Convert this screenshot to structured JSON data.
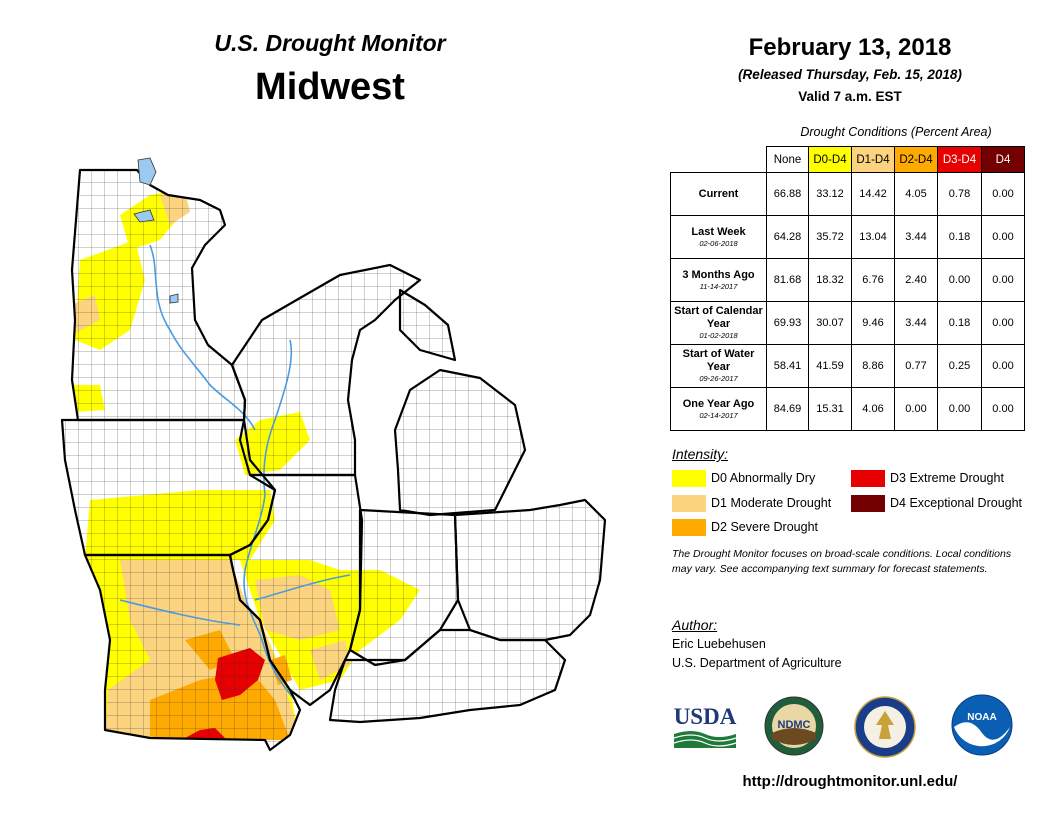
{
  "header": {
    "brand": "U.S. Drought Monitor",
    "region": "Midwest",
    "date": "February 13, 2018",
    "released": "(Released Thursday, Feb. 15, 2018)",
    "valid": "Valid 7 a.m. EST"
  },
  "table": {
    "title": "Drought Conditions (Percent Area)",
    "columns": [
      {
        "label": "None",
        "color": "#ffffff",
        "text": "#000000"
      },
      {
        "label": "D0-D4",
        "color": "#ffff00",
        "text": "#000000"
      },
      {
        "label": "D1-D4",
        "color": "#fcd37f",
        "text": "#000000"
      },
      {
        "label": "D2-D4",
        "color": "#ffaa00",
        "text": "#000000"
      },
      {
        "label": "D3-D4",
        "color": "#e60000",
        "text": "#ffffff"
      },
      {
        "label": "D4",
        "color": "#730000",
        "text": "#ffffff"
      }
    ],
    "rows": [
      {
        "label": "Current",
        "date": "",
        "values": [
          "66.88",
          "33.12",
          "14.42",
          "4.05",
          "0.78",
          "0.00"
        ]
      },
      {
        "label": "Last Week",
        "date": "02-06-2018",
        "values": [
          "64.28",
          "35.72",
          "13.04",
          "3.44",
          "0.18",
          "0.00"
        ]
      },
      {
        "label": "3 Months Ago",
        "date": "11-14-2017",
        "values": [
          "81.68",
          "18.32",
          "6.76",
          "2.40",
          "0.00",
          "0.00"
        ]
      },
      {
        "label": "Start of Calendar Year",
        "date": "01-02-2018",
        "values": [
          "69.93",
          "30.07",
          "9.46",
          "3.44",
          "0.18",
          "0.00"
        ]
      },
      {
        "label": "Start of Water Year",
        "date": "09-26-2017",
        "values": [
          "58.41",
          "41.59",
          "8.86",
          "0.77",
          "0.25",
          "0.00"
        ]
      },
      {
        "label": "One Year Ago",
        "date": "02-14-2017",
        "values": [
          "84.69",
          "15.31",
          "4.06",
          "0.00",
          "0.00",
          "0.00"
        ]
      }
    ]
  },
  "legend": {
    "title": "Intensity:",
    "items": [
      {
        "label": "D0 Abnormally Dry",
        "color": "#ffff00"
      },
      {
        "label": "D1 Moderate Drought",
        "color": "#fcd37f"
      },
      {
        "label": "D2 Severe Drought",
        "color": "#ffaa00"
      },
      {
        "label": "D3 Extreme Drought",
        "color": "#e60000"
      },
      {
        "label": "D4 Exceptional Drought",
        "color": "#730000"
      }
    ]
  },
  "note": "The Drought Monitor focuses on broad-scale conditions. Local conditions may vary. See accompanying text summary for forecast statements.",
  "author": {
    "title": "Author:",
    "name": "Eric Luebehusen",
    "org": "U.S. Department of Agriculture"
  },
  "logos": {
    "usda": "USDA",
    "ndmc": "NDMC",
    "noaa": "NOAA"
  },
  "url": "http://droughtmonitor.unl.edu/",
  "map": {
    "drought_classes_present": [
      "D0",
      "D1",
      "D2",
      "D3"
    ],
    "water_color": "#9cc9f0"
  }
}
